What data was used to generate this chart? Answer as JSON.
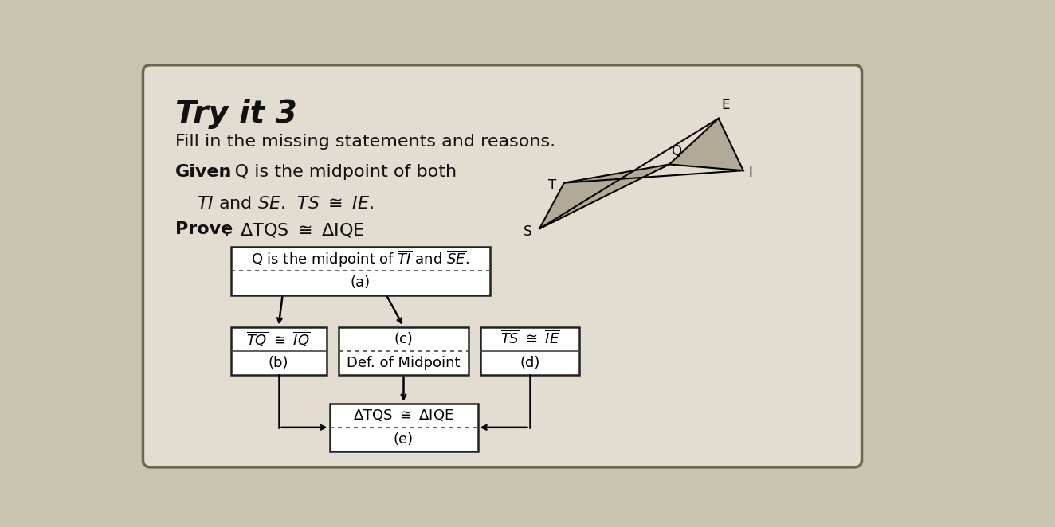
{
  "bg_color": "#c8c4b0",
  "card_color": "#e2ddd0",
  "card_edge": "#6a6650",
  "text_color": "#111111",
  "title": "Try it 3",
  "subtitle": "Fill in the missing statements and reasons.",
  "box_top_stmt": "Q is the midpoint of $\\overline{TI}$ and $\\overline{SE}$.",
  "box_top_rsn": "(a)",
  "box_left_stmt": "$\\overline{TQ}$ $\\cong$ $\\overline{IQ}$",
  "box_left_rsn": "(b)",
  "box_mid_stmt": "(c)",
  "box_mid_rsn": "Def. of Midpoint",
  "box_right_stmt": "$\\overline{TS}$ $\\cong$ $\\overline{IE}$",
  "box_right_rsn": "(d)",
  "box_bot_stmt": "$\\Delta$TQS $\\cong$ $\\Delta$IQE",
  "box_bot_rsn": "(e)"
}
